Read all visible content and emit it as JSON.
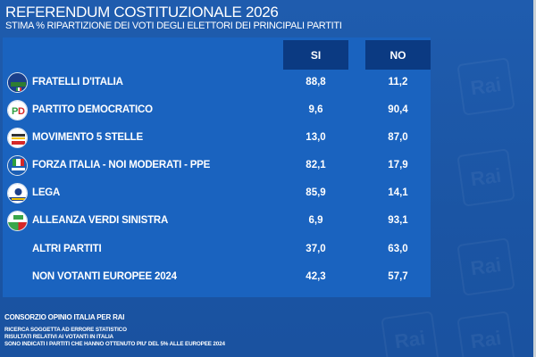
{
  "header": {
    "title": "REFERENDUM COSTITUZIONALE 2026",
    "subtitle": "STIMA % RIPARTIZIONE DEI VOTI DEGLI ELETTORI DEI PRINCIPALI PARTITI"
  },
  "table": {
    "columns": [
      "SI",
      "NO"
    ],
    "rows": [
      {
        "party": "FRATELLI D'ITALIA",
        "si": "88,8",
        "no": "11,2",
        "logo": "fratelli-ditalia-logo",
        "logo_colors": [
          "#1b3f8a",
          "#2e7d32",
          "#e53935"
        ]
      },
      {
        "party": "PARTITO DEMOCRATICO",
        "si": "9,6",
        "no": "90,4",
        "logo": "partito-democratico-logo",
        "logo_colors": [
          "#ffffff",
          "#2e9e3e",
          "#d62828"
        ]
      },
      {
        "party": "MOVIMENTO 5 STELLE",
        "si": "13,0",
        "no": "87,0",
        "logo": "movimento-5-stelle-logo",
        "logo_colors": [
          "#ffffff",
          "#f2c200",
          "#d62828"
        ]
      },
      {
        "party": "FORZA ITALIA - NOI MODERATI - PPE",
        "si": "82,1",
        "no": "17,9",
        "logo": "forza-italia-logo",
        "logo_colors": [
          "#ffffff",
          "#1c5fb5",
          "#d62828"
        ]
      },
      {
        "party": "LEGA",
        "si": "85,9",
        "no": "14,1",
        "logo": "lega-logo",
        "logo_colors": [
          "#ffffff",
          "#1b3f8a",
          "#f2c200"
        ]
      },
      {
        "party": "ALLEANZA VERDI SINISTRA",
        "si": "6,9",
        "no": "93,1",
        "logo": "alleanza-verdi-sinistra-logo",
        "logo_colors": [
          "#ffffff",
          "#3aa64a",
          "#d62828"
        ]
      },
      {
        "party": "ALTRI PARTITI",
        "si": "37,0",
        "no": "63,0"
      },
      {
        "party": "NON VOTANTI EUROPEE 2024",
        "si": "42,3",
        "no": "57,7"
      }
    ]
  },
  "footer": {
    "source": "CONSORZIO OPINIO ITALIA PER RAI",
    "notes": [
      "RICERCA SOGGETTA AD ERRORE STATISTICO",
      "RISULTATI RELATIVI AI VOTANTI IN ITALIA",
      "SONO INDICATI I PARTITI CHE HANNO OTTENUTO PIU' DEL 5% ALLE EUROPEE 2024"
    ]
  },
  "watermark": "Rai",
  "colors": {
    "background": "#1d58a8",
    "panel": "#1a63bf",
    "column_header": "#0b3a82"
  }
}
